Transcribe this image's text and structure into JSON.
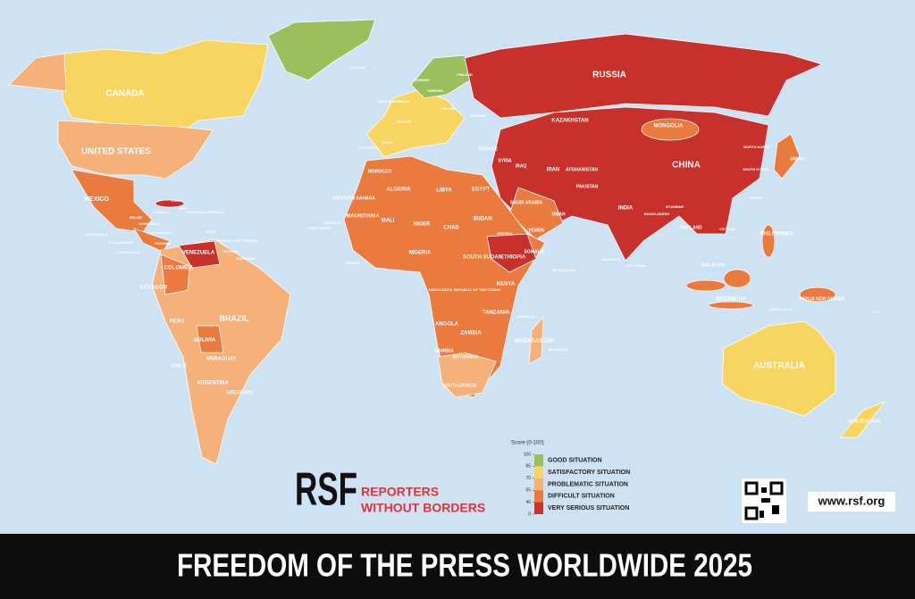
{
  "title": "FREEDOM OF THE PRESS WORLDWIDE 2025",
  "logo": {
    "mark": "RSF",
    "line1": "REPORTERS",
    "line2": "WITHOUT BORDERS"
  },
  "website": "www.rsf.org",
  "legend": {
    "title": "Score (0-100)",
    "ticks": [
      100,
      85,
      70,
      55,
      40,
      0
    ],
    "items": [
      {
        "label": "GOOD SITUATION",
        "color": "#9cbf5e"
      },
      {
        "label": "SATISFACTORY SITUATION",
        "color": "#f8d561"
      },
      {
        "label": "PROBLEMATIC SITUATION",
        "color": "#f6b07a"
      },
      {
        "label": "DIFFICULT SITUATION",
        "color": "#ea7a3d"
      },
      {
        "label": "VERY SERIOUS SITUATION",
        "color": "#c8312b"
      }
    ]
  },
  "labels": [
    "CANADA",
    "UNITED STATES",
    "MEXICO",
    "CUBA",
    "HAITI",
    "DOMINICAN REPUBLIC",
    "JAMAICA",
    "BELIZE",
    "HONDURAS",
    "GUATEMALA",
    "NICARAGUA",
    "EL SALVADOR",
    "COSTA RICA",
    "PANAMA",
    "VENEZUELA",
    "COLOMBIA",
    "ECUADOR",
    "PERU",
    "BRAZIL",
    "BOLIVIA",
    "PARAGUAY",
    "CHILE",
    "ARGENTINA",
    "URUGUAY",
    "GUYANA",
    "SURINAME",
    "TRINIDAD AND TOBAGO",
    "OECS",
    "ICELAND",
    "NORWAY",
    "SWEDEN",
    "FINLAND",
    "UNITED KINGDOM",
    "FRANCE",
    "SPAIN",
    "PORTUGAL",
    "POLAND",
    "UKRAINE",
    "RUSSIA",
    "KAZAKHSTAN",
    "MONGOLIA",
    "CHINA",
    "INDIA",
    "PAKISTAN",
    "AFGHANISTAN",
    "IRAN",
    "TÜRKIYE",
    "SYRIA",
    "IRAQ",
    "SAUDI ARABIA",
    "EGYPT",
    "LIBYA",
    "ALGERIA",
    "MOROCCO",
    "WESTERN SAHARA",
    "MAURITANIA",
    "MALI",
    "NIGER",
    "CHAD",
    "SUDAN",
    "SOUTH SUDAN",
    "ETHIOPIA",
    "SOMALIA",
    "KENYA",
    "NIGERIA",
    "SENEGAL",
    "DEMOCRATIC REPUBLIC OF THE CONGO",
    "TANZANIA",
    "ANGOLA",
    "ZAMBIA",
    "NAMIBIA",
    "BOTSWANA",
    "SOUTH AFRICA",
    "MADAGASCAR",
    "YEMEN",
    "OMAN",
    "JAPAN",
    "SOUTH KOREA",
    "NORTH KOREA",
    "TAIWAN",
    "PHILIPPINES",
    "VIETNAM",
    "THAILAND",
    "MALAYSIA",
    "INDONESIA",
    "PAPUA NEW GUINEA",
    "AUSTRALIA",
    "NEW ZEALAND",
    "FIJI",
    "SEYCHELLES",
    "MALDIVES",
    "SRI LANKA",
    "TIMOR-LESTE",
    "BANGLADESH",
    "MYANMAR",
    "MAURITIUS",
    "COMOROS",
    "CAPE VERDE",
    "LIBERIA",
    "ERITREA"
  ]
}
